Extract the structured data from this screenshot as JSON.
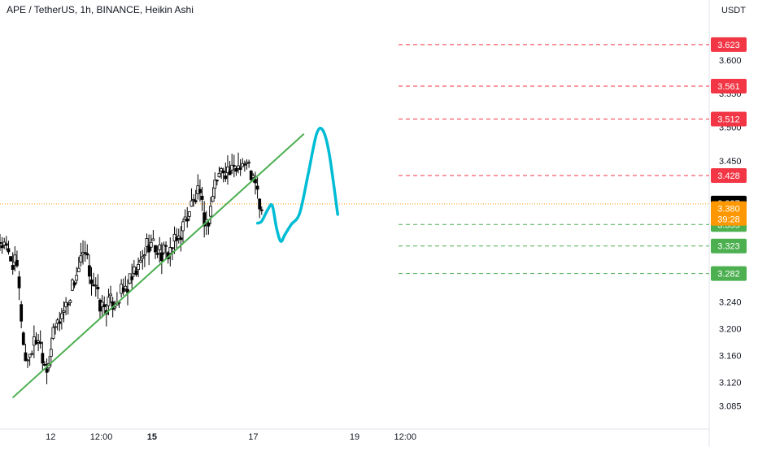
{
  "header": {
    "title": "APE / TetherUS, 1h, BINANCE, Heikin Ashi",
    "currency": "USDT"
  },
  "colors": {
    "up": "#ffffff",
    "down": "#000000",
    "candle_outline": "#000000",
    "trendline": "#4caf50",
    "projection": "#00bcd4",
    "resistance": "#f23645",
    "support": "#4caf50",
    "last_price_line": "#ff9800",
    "price_badge": "#000000",
    "countdown_badge": "#ff9800"
  },
  "chart_data": {
    "type": "candlestick",
    "title": "APE / TetherUS, 1h, BINANCE, Heikin Ashi",
    "y_axis": {
      "range": [
        3.06,
        3.67
      ],
      "ticks": [
        3.085,
        3.12,
        3.16,
        3.2,
        3.24,
        3.282,
        3.323,
        3.355,
        3.38,
        3.45,
        3.5,
        3.55,
        3.6
      ]
    },
    "x_axis": {
      "range": [
        0,
        168
      ],
      "ticks": [
        {
          "label": "12",
          "x": 12,
          "bold": false
        },
        {
          "label": "12:00",
          "x": 24,
          "bold": false
        },
        {
          "label": "15",
          "x": 36,
          "bold": true
        },
        {
          "label": "17",
          "x": 60,
          "bold": false
        },
        {
          "label": "19",
          "x": 84,
          "bold": false
        },
        {
          "label": "12:00",
          "x": 96,
          "bold": false
        }
      ]
    },
    "candle_anchors": [
      [
        0,
        3.33
      ],
      [
        4,
        3.29
      ],
      [
        6,
        3.15
      ],
      [
        9,
        3.19
      ],
      [
        11,
        3.14
      ],
      [
        13,
        3.2
      ],
      [
        16,
        3.24
      ],
      [
        18,
        3.28
      ],
      [
        20,
        3.31
      ],
      [
        22,
        3.27
      ],
      [
        24,
        3.23
      ],
      [
        27,
        3.24
      ],
      [
        30,
        3.26
      ],
      [
        33,
        3.29
      ],
      [
        35,
        3.33
      ],
      [
        37,
        3.32
      ],
      [
        39,
        3.31
      ],
      [
        42,
        3.33
      ],
      [
        45,
        3.38
      ],
      [
        47,
        3.4
      ],
      [
        49,
        3.35
      ],
      [
        51,
        3.42
      ],
      [
        53,
        3.44
      ],
      [
        55,
        3.43
      ],
      [
        57,
        3.45
      ],
      [
        59,
        3.44
      ],
      [
        61,
        3.4
      ],
      [
        62,
        3.37
      ]
    ],
    "last_price": 3.387,
    "current_price": 3.38,
    "countdown": "39:28",
    "levels": [
      {
        "value": 3.623,
        "label": "3.623",
        "kind": "resistance"
      },
      {
        "value": 3.561,
        "label": "3.561",
        "kind": "resistance"
      },
      {
        "value": 3.512,
        "label": "3.512",
        "kind": "resistance"
      },
      {
        "value": 3.428,
        "label": "3.428",
        "kind": "resistance"
      },
      {
        "value": 3.355,
        "label": "3.355",
        "kind": "support"
      },
      {
        "value": 3.323,
        "label": "3.323",
        "kind": "support"
      },
      {
        "value": 3.282,
        "label": "3.282",
        "kind": "support"
      }
    ],
    "trendline": {
      "start": [
        3,
        3.097
      ],
      "end": [
        72,
        3.49
      ]
    },
    "projection": [
      [
        61,
        3.357
      ],
      [
        62,
        3.36
      ],
      [
        63.5,
        3.378
      ],
      [
        64.5,
        3.383
      ],
      [
        65.5,
        3.35
      ],
      [
        66.5,
        3.33
      ],
      [
        67.5,
        3.34
      ],
      [
        69,
        3.355
      ],
      [
        71,
        3.372
      ],
      [
        73,
        3.43
      ],
      [
        75,
        3.49
      ],
      [
        76.5,
        3.495
      ],
      [
        78,
        3.46
      ],
      [
        80,
        3.37
      ]
    ]
  }
}
